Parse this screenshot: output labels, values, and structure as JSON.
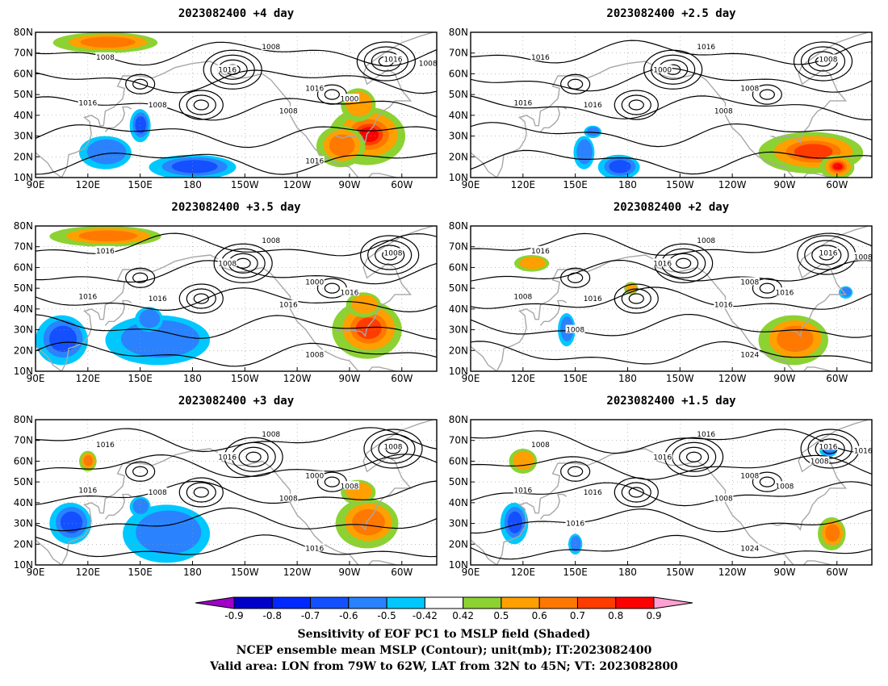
{
  "panels": [
    {
      "title": "2023082400 +4 day",
      "contour_labels": [
        "1008",
        "1008",
        "1016",
        "1016",
        "1016",
        "1008",
        "1016",
        "1008",
        "1000",
        "1016",
        "1008"
      ],
      "high_regions": [
        [
          -80,
          30,
          22,
          14,
          0.82
        ],
        [
          -95,
          25,
          14,
          10,
          0.62
        ],
        [
          130,
          75,
          30,
          5,
          0.62
        ],
        [
          -85,
          45,
          10,
          8,
          0.55
        ]
      ],
      "low_regions": [
        [
          150,
          35,
          6,
          8,
          -0.6
        ],
        [
          180,
          15,
          25,
          6,
          -0.6
        ],
        [
          130,
          22,
          15,
          8,
          -0.5
        ]
      ]
    },
    {
      "title": "2023082400 +2.5 day",
      "contour_labels": [
        "1016",
        "1016",
        "1000",
        "1008",
        "1008",
        "1008",
        "1016",
        "1016"
      ],
      "high_regions": [
        [
          -75,
          22,
          30,
          10,
          0.7
        ],
        [
          -60,
          15,
          10,
          6,
          0.82
        ]
      ],
      "low_regions": [
        [
          175,
          15,
          12,
          6,
          -0.65
        ],
        [
          155,
          22,
          6,
          8,
          -0.5
        ],
        [
          160,
          32,
          5,
          3,
          -0.5
        ]
      ]
    },
    {
      "title": "2023082400 +3.5 day",
      "contour_labels": [
        "1016",
        "1008",
        "1008",
        "1008",
        "1000",
        "1016",
        "1016",
        "1016",
        "1016",
        "1008"
      ],
      "high_regions": [
        [
          -80,
          30,
          20,
          14,
          0.78
        ],
        [
          130,
          75,
          32,
          5,
          0.62
        ],
        [
          -82,
          42,
          10,
          6,
          0.55
        ]
      ],
      "low_regions": [
        [
          105,
          25,
          15,
          12,
          -0.6
        ],
        [
          160,
          25,
          30,
          12,
          -0.55
        ],
        [
          155,
          35,
          8,
          6,
          -0.5
        ]
      ]
    },
    {
      "title": "2023082400 +2 day",
      "contour_labels": [
        "1016",
        "1008",
        "1016",
        "1016",
        "1008",
        "1016",
        "1008",
        "1016",
        "1016",
        "1024",
        "1008",
        "1008"
      ],
      "high_regions": [
        [
          -85,
          25,
          20,
          12,
          0.6
        ],
        [
          125,
          62,
          10,
          4,
          0.55
        ],
        [
          182,
          50,
          4,
          3,
          0.58
        ]
      ],
      "low_regions": [
        [
          145,
          30,
          5,
          8,
          -0.5
        ],
        [
          -55,
          48,
          4,
          3,
          -0.5
        ]
      ]
    },
    {
      "title": "2023082400 +3 day",
      "contour_labels": [
        "1016",
        "1008",
        "1016",
        "1008",
        "1000",
        "1008",
        "1016",
        "1008",
        "1008",
        "1016"
      ],
      "high_regions": [
        [
          -80,
          30,
          18,
          12,
          0.65
        ],
        [
          -85,
          45,
          10,
          6,
          0.55
        ],
        [
          120,
          60,
          5,
          5,
          0.62
        ]
      ],
      "low_regions": [
        [
          165,
          25,
          25,
          14,
          -0.55
        ],
        [
          110,
          30,
          12,
          10,
          -0.6
        ],
        [
          150,
          38,
          6,
          5,
          -0.5
        ]
      ]
    },
    {
      "title": "2023082400 +1.5 day",
      "contour_labels": [
        "1008",
        "1016",
        "1016",
        "1016",
        "1008",
        "1008",
        "1016",
        "1016",
        "1008",
        "1024",
        "1016",
        "1016",
        "1008"
      ],
      "high_regions": [
        [
          -63,
          25,
          8,
          8,
          0.6
        ],
        [
          120,
          60,
          8,
          6,
          0.52
        ]
      ],
      "low_regions": [
        [
          115,
          30,
          8,
          10,
          -0.6
        ],
        [
          150,
          20,
          4,
          5,
          -0.5
        ],
        [
          -65,
          65,
          5,
          3,
          -0.5
        ]
      ]
    }
  ],
  "axes": {
    "x_ticks": [
      "90E",
      "120E",
      "150E",
      "180",
      "150W",
      "120W",
      "90W",
      "60W"
    ],
    "x_values": [
      90,
      120,
      150,
      180,
      210,
      240,
      270,
      300
    ],
    "y_ticks": [
      "10N",
      "20N",
      "30N",
      "40N",
      "50N",
      "60N",
      "70N",
      "80N"
    ],
    "y_values": [
      10,
      20,
      30,
      40,
      50,
      60,
      70,
      80
    ],
    "lon_range": [
      90,
      320
    ],
    "lat_range": [
      10,
      80
    ]
  },
  "colorbar": {
    "tick_labels": [
      "-0.9",
      "-0.8",
      "-0.7",
      "-0.6",
      "-0.5",
      "-0.42",
      "0.42",
      "0.5",
      "0.6",
      "0.7",
      "0.8",
      "0.9"
    ],
    "bins": [
      -0.9,
      -0.8,
      -0.7,
      -0.6,
      -0.5,
      -0.42,
      0.42,
      0.5,
      0.6,
      0.7,
      0.8,
      0.9
    ],
    "colors": [
      "#a000c8",
      "#0000c8",
      "#0028ff",
      "#1450ff",
      "#2a82ff",
      "#00c8ff",
      "#ffffff",
      "#8cd232",
      "#ffa000",
      "#ff7800",
      "#ff3c00",
      "#ff0000",
      "#ffa0d2"
    ]
  },
  "captions": [
    "Sensitivity of EOF PC1 to MSLP field (Shaded)",
    "NCEP ensemble mean MSLP (Contour); unit(mb); IT:2023082400",
    "Valid area: LON from 79W to 62W, LAT from 32N to 45N; VT: 2023082800"
  ]
}
